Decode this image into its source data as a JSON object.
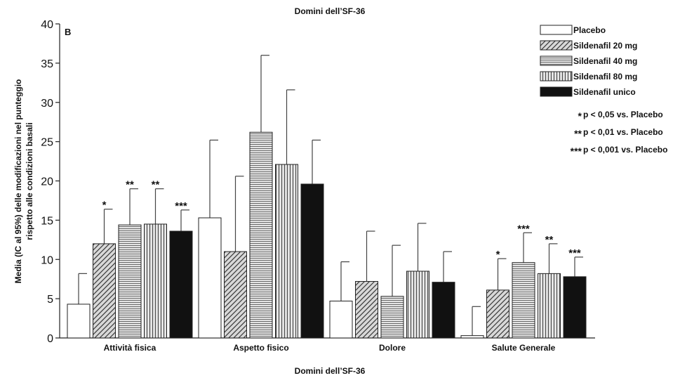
{
  "chart_data": {
    "type": "bar",
    "title": "Domini dell’SF-36",
    "panel_label": "B",
    "xlabel": "Domini dell’SF-36",
    "ylabel_lines": [
      "Media (IC al 95%) delle modificazioni nel punteggio",
      "rispetto alle condizioni basali"
    ],
    "ylim": [
      0,
      40
    ],
    "yticks": [
      0,
      5,
      10,
      15,
      20,
      25,
      30,
      35,
      40
    ],
    "grid": false,
    "legend_position": "top-right",
    "categories": [
      "Attività fisica",
      "Aspetto fisico",
      "Dolore",
      "Salute Generale"
    ],
    "series": [
      {
        "name": "Placebo",
        "pattern": "white",
        "values": [
          4.3,
          15.3,
          4.7,
          0.3
        ],
        "ci_upper": [
          8.2,
          25.2,
          9.7,
          4.0
        ],
        "sig": [
          "",
          "",
          "",
          ""
        ]
      },
      {
        "name": "Sildenafil 20 mg",
        "pattern": "diagonal",
        "values": [
          12.0,
          11.0,
          7.2,
          6.1
        ],
        "ci_upper": [
          16.4,
          20.6,
          13.6,
          10.1
        ],
        "sig": [
          "*",
          "",
          "",
          "*"
        ]
      },
      {
        "name": "Sildenafil 40 mg",
        "pattern": "horizontal",
        "values": [
          14.4,
          26.2,
          5.3,
          9.6
        ],
        "ci_upper": [
          19.0,
          36.0,
          11.8,
          13.4
        ],
        "sig": [
          "**",
          "",
          "",
          "***"
        ]
      },
      {
        "name": "Sildenafil 80 mg",
        "pattern": "vertical",
        "values": [
          14.5,
          22.1,
          8.5,
          8.2
        ],
        "ci_upper": [
          19.0,
          31.6,
          14.6,
          12.0
        ],
        "sig": [
          "**",
          "",
          "",
          "**"
        ]
      },
      {
        "name": "Sildenafil unico",
        "pattern": "black",
        "values": [
          13.6,
          19.6,
          7.1,
          7.8
        ],
        "ci_upper": [
          16.3,
          25.2,
          11.0,
          10.3
        ],
        "sig": [
          "***",
          "",
          "",
          "***"
        ]
      }
    ],
    "significance_legend": [
      {
        "symbol": "*",
        "label": "p < 0,05 vs. Placebo"
      },
      {
        "symbol": "**",
        "label": "p < 0,01 vs. Placebo"
      },
      {
        "symbol": "***",
        "label": "p < 0,001 vs. Placebo"
      }
    ]
  }
}
